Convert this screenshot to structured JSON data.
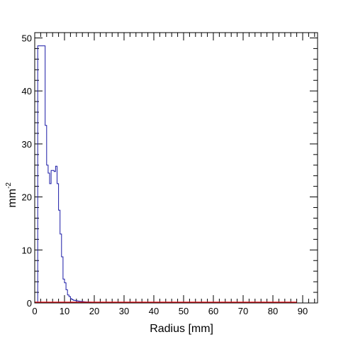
{
  "chart_data": {
    "type": "step",
    "title": "",
    "xlabel": "Radius [mm]",
    "ylabel_base": "mm",
    "ylabel_exp": "-2",
    "xlim": [
      0,
      95
    ],
    "ylim": [
      0,
      51
    ],
    "x_ticks": [
      0,
      10,
      20,
      30,
      40,
      50,
      60,
      70,
      80,
      90
    ],
    "y_ticks": [
      0,
      10,
      20,
      30,
      40,
      50
    ],
    "grid": false,
    "series": [
      {
        "color": "#1a1aa6",
        "bin_width": 0.5,
        "x_start": 1,
        "values": [
          48.5,
          48.5,
          48.5,
          48.5,
          48.5,
          33.5,
          26.0,
          24.5,
          22.5,
          25.0,
          25.0,
          24.8,
          25.8,
          22.5,
          17.5,
          13.0,
          8.7,
          4.5,
          3.8,
          2.5,
          1.5,
          1.2,
          0.8,
          0.6,
          0.5,
          0.45,
          0.4,
          0.35,
          0.3,
          0.28,
          0.25,
          0.22,
          0.2,
          0.18,
          0.16,
          0.15,
          0.14,
          0.12,
          0.1,
          0.09,
          0.08,
          0.07,
          0.06,
          0.05,
          0.04,
          0.03,
          0.02,
          0.02,
          0.01,
          0.01,
          0.01,
          0.0
        ]
      },
      {
        "color": "#e8141c",
        "type": "line",
        "x": [
          0,
          88
        ],
        "y": [
          0.1,
          0.1
        ]
      }
    ]
  }
}
